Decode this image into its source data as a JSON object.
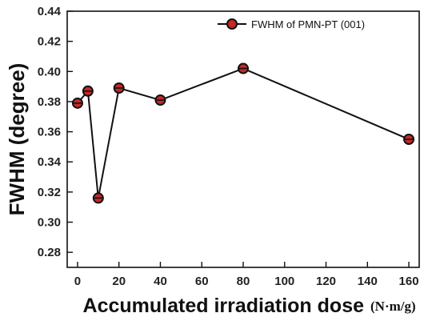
{
  "chart_data": {
    "type": "line",
    "xlabel": "Accumulated irradiation dose",
    "xlabel_unit": "(N·m/g)",
    "ylabel": "FWHM (degree)",
    "xlim": [
      -5,
      165
    ],
    "ylim": [
      0.27,
      0.44
    ],
    "x_ticks": [
      0,
      20,
      40,
      60,
      80,
      100,
      120,
      140,
      160
    ],
    "y_ticks": [
      0.28,
      0.3,
      0.32,
      0.34,
      0.36,
      0.38,
      0.4,
      0.42,
      0.44
    ],
    "x_tick_labels": [
      "0",
      "20",
      "40",
      "60",
      "80",
      "100",
      "120",
      "140",
      "160"
    ],
    "y_tick_labels": [
      "0.28",
      "0.30",
      "0.32",
      "0.34",
      "0.36",
      "0.38",
      "0.40",
      "0.42",
      "0.44"
    ],
    "legend_position": "top-right",
    "grid": false,
    "series": [
      {
        "name": "FWHM of PMN-PT (001)",
        "color": "#c62828",
        "marker": "circle",
        "x": [
          0,
          5,
          10,
          20,
          40,
          80,
          160
        ],
        "y": [
          0.379,
          0.387,
          0.316,
          0.389,
          0.381,
          0.402,
          0.355
        ]
      }
    ]
  }
}
